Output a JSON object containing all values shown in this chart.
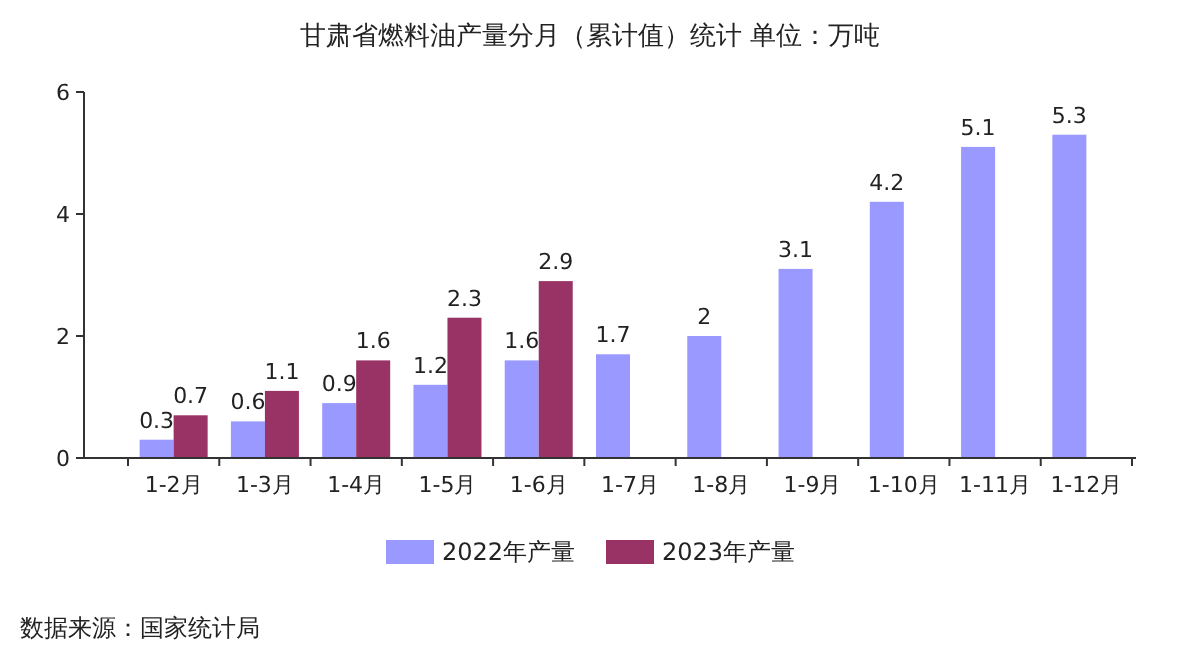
{
  "chart_data": {
    "type": "bar",
    "title": "甘肃省燃料油产量分月（累计值）统计 单位：万吨",
    "categories": [
      "1-2月",
      "1-3月",
      "1-4月",
      "1-5月",
      "1-6月",
      "1-7月",
      "1-8月",
      "1-9月",
      "1-10月",
      "1-11月",
      "1-12月"
    ],
    "series": [
      {
        "name": "2022年产量",
        "color": "#9999ff",
        "values": [
          0.3,
          0.6,
          0.9,
          1.2,
          1.6,
          1.7,
          2,
          3.1,
          4.2,
          5.1,
          5.3
        ]
      },
      {
        "name": "2023年产量",
        "color": "#993366",
        "values": [
          0.7,
          1.1,
          1.6,
          2.3,
          2.9,
          null,
          null,
          null,
          null,
          null,
          null
        ]
      }
    ],
    "ylim": [
      0,
      6
    ],
    "yticks": [
      0,
      2,
      4,
      6
    ],
    "data_labels": true,
    "legend": "bottom",
    "grid": false,
    "annotations": [
      "数据来源：国家统计局"
    ]
  }
}
